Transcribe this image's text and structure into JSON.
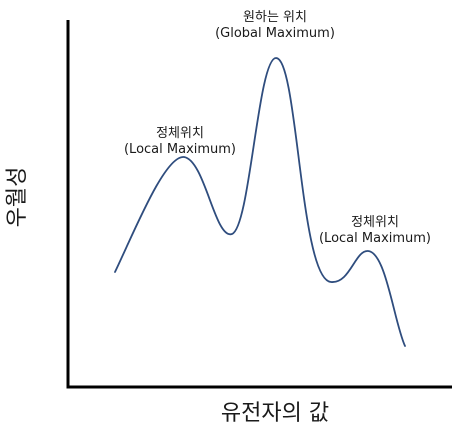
{
  "diagram": {
    "axes": {
      "x_label": "유전자의 값",
      "y_label": "우월성"
    },
    "annotations": {
      "global_maximum": {
        "line1": "원하는 위치",
        "line2": "(Global Maximum)"
      },
      "local_maximum_left": {
        "line1": "정체위치",
        "line2": "(Local Maximum)"
      },
      "local_maximum_right": {
        "line1": "정체위치",
        "line2": "(Local Maximum)"
      }
    },
    "colors": {
      "curve": "#2f4d7e",
      "axis": "#000000",
      "text": "#1a1a1a"
    }
  }
}
